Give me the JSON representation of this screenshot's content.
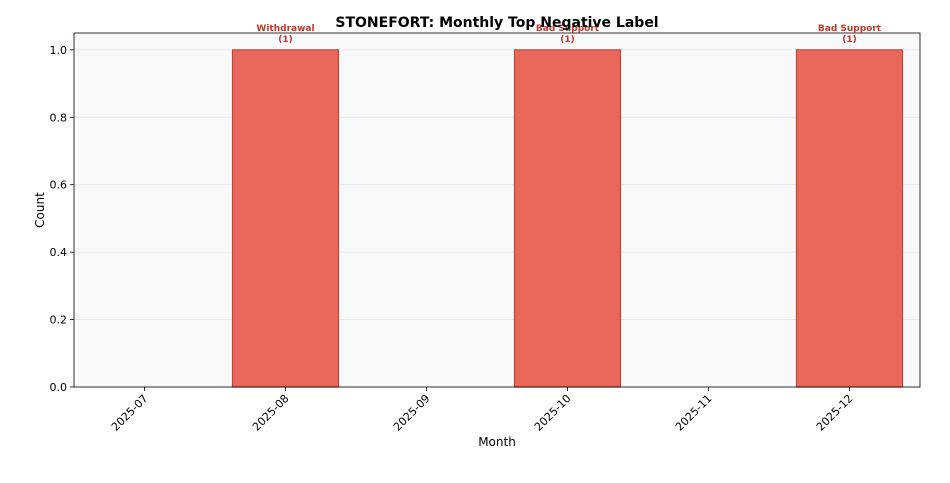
{
  "chart_data": {
    "type": "bar",
    "title": "STONEFORT: Monthly Top Negative Label",
    "xlabel": "Month",
    "ylabel": "Count",
    "categories": [
      "2025-07",
      "2025-08",
      "2025-09",
      "2025-10",
      "2025-11",
      "2025-12"
    ],
    "values": [
      0,
      1,
      0,
      1,
      0,
      1
    ],
    "annotations": [
      {
        "category": "2025-08",
        "label": "Withdrawal",
        "count_text": "(1)"
      },
      {
        "category": "2025-10",
        "label": "Bad Support",
        "count_text": "(1)"
      },
      {
        "category": "2025-12",
        "label": "Bad Support",
        "count_text": "(1)"
      }
    ],
    "ylim": [
      0,
      1.05
    ],
    "yticks": [
      "0.0",
      "0.2",
      "0.4",
      "0.6",
      "0.8",
      "1.0"
    ],
    "grid": true,
    "colors": {
      "bar_fill": "#e8695c",
      "bar_edge": "#c0463a",
      "annotation": "#c0392b",
      "plot_background": "#f7f9fb",
      "grid": "#e3e6ea"
    }
  }
}
